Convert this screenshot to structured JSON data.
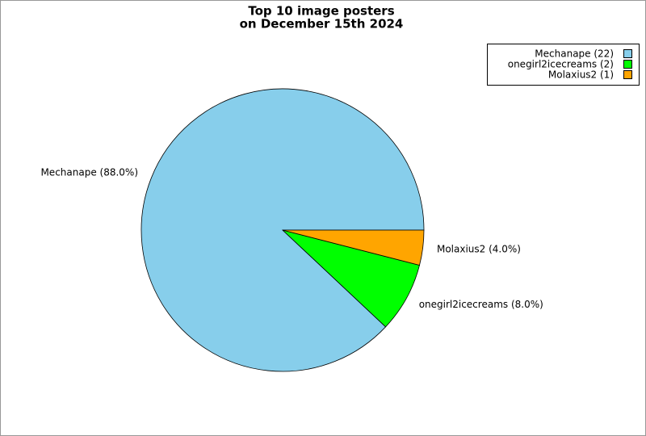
{
  "chart_data": {
    "type": "pie",
    "title": [
      "Top 10 image posters",
      "on December 15th 2024"
    ],
    "categories": [
      "Mechanape",
      "onegirl2icecreams",
      "Molaxius2"
    ],
    "values": [
      22,
      2,
      1
    ],
    "value_labels": [
      "Mechanape (22)",
      "onegirl2icecreams (2)",
      "Molaxius2 (1)"
    ],
    "slice_labels": [
      "Mechanape (88.0%)",
      "onegirl2icecreams (8.0%)",
      "Molaxius2 (4.0%)"
    ],
    "colors": [
      "#87ceeb",
      "#00ff00",
      "#ffa500"
    ],
    "legend": "upper right"
  }
}
